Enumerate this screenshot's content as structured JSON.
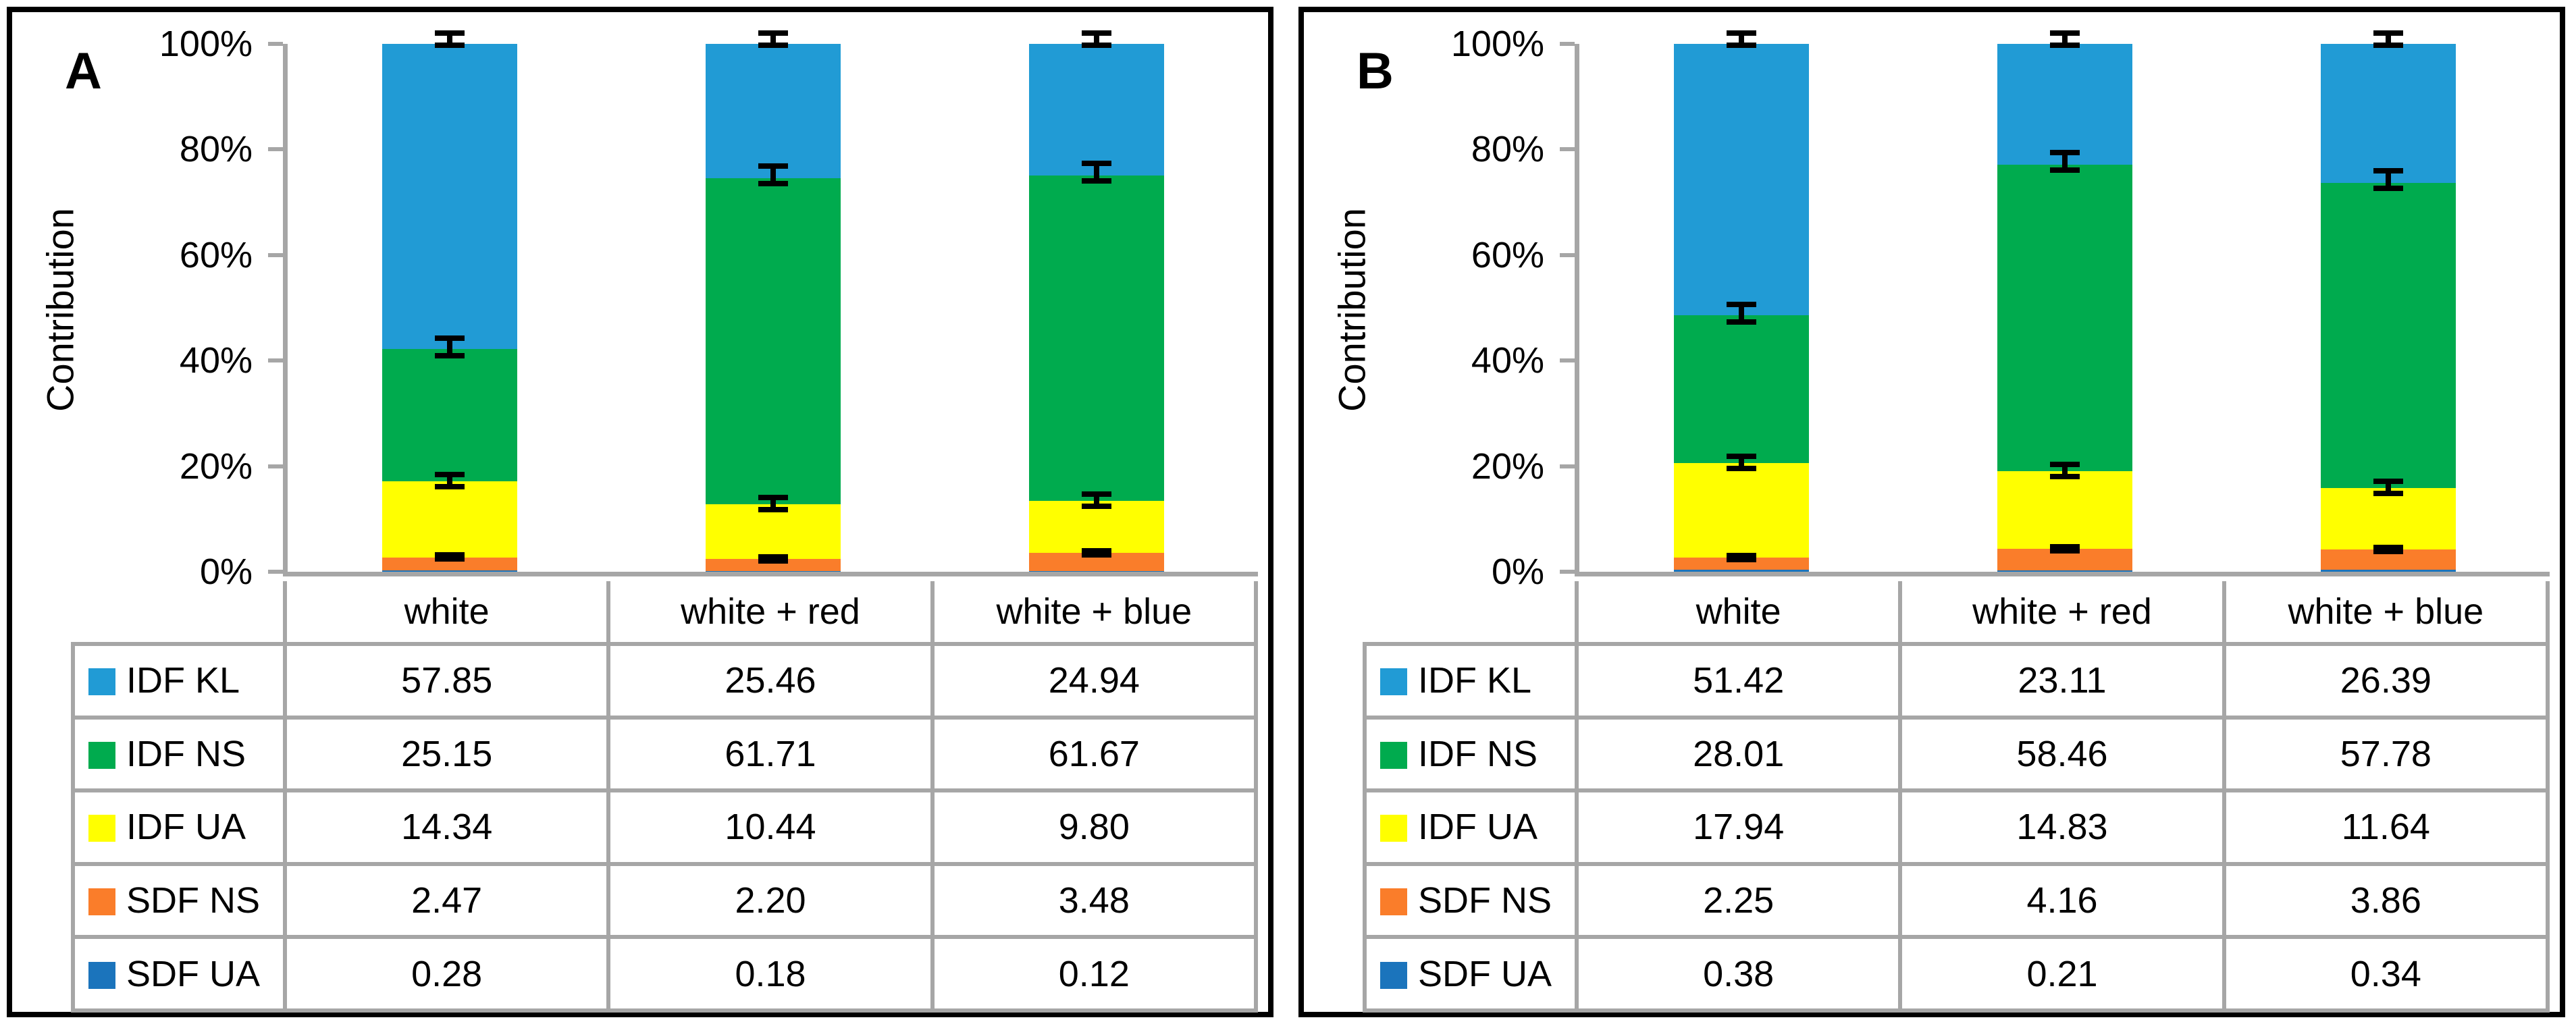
{
  "figure": {
    "description": "Two-panel 100% stacked column figure with error bars and legend data tables",
    "panel_count": 2
  },
  "colors": {
    "idf_kl": "#219BD5",
    "idf_ns": "#00AB4E",
    "idf_ua": "#FFFF00",
    "sdf_ns": "#FA7D2A",
    "sdf_ua": "#1B74BC",
    "axis": "#A6A6A6",
    "error_bar": "#000000",
    "panel_border": "#000000"
  },
  "chart_data": [
    {
      "type": "bar",
      "stacked": true,
      "panel_label": "A",
      "ylabel": "Contribution",
      "xlabel": "",
      "ylim": [
        0,
        100
      ],
      "y_ticks": [
        "100%",
        "80%",
        "60%",
        "40%",
        "20%",
        "0%"
      ],
      "grid": false,
      "error_bars": true,
      "legend_position": "table-below",
      "categories": [
        "white",
        "white + red",
        "white + blue"
      ],
      "series": [
        {
          "name": "IDF KL",
          "color_key": "idf_kl",
          "values": [
            57.85,
            25.46,
            24.94
          ]
        },
        {
          "name": "IDF NS",
          "color_key": "idf_ns",
          "values": [
            25.15,
            61.71,
            61.67
          ]
        },
        {
          "name": "IDF UA",
          "color_key": "idf_ua",
          "values": [
            14.34,
            10.44,
            9.8
          ]
        },
        {
          "name": "SDF NS",
          "color_key": "sdf_ns",
          "values": [
            2.47,
            2.2,
            3.48
          ]
        },
        {
          "name": "SDF UA",
          "color_key": "sdf_ua",
          "values": [
            0.28,
            0.18,
            0.12
          ]
        }
      ]
    },
    {
      "type": "bar",
      "stacked": true,
      "panel_label": "B",
      "ylabel": "Contribution",
      "xlabel": "",
      "ylim": [
        0,
        100
      ],
      "y_ticks": [
        "100%",
        "80%",
        "60%",
        "40%",
        "20%",
        "0%"
      ],
      "grid": false,
      "error_bars": true,
      "legend_position": "table-below",
      "categories": [
        "white",
        "white + red",
        "white + blue"
      ],
      "series": [
        {
          "name": "IDF KL",
          "color_key": "idf_kl",
          "values": [
            51.42,
            23.11,
            26.39
          ]
        },
        {
          "name": "IDF NS",
          "color_key": "idf_ns",
          "values": [
            28.01,
            58.46,
            57.78
          ]
        },
        {
          "name": "IDF UA",
          "color_key": "idf_ua",
          "values": [
            17.94,
            14.83,
            11.64
          ]
        },
        {
          "name": "SDF NS",
          "color_key": "sdf_ns",
          "values": [
            2.25,
            4.16,
            3.86
          ]
        },
        {
          "name": "SDF UA",
          "color_key": "sdf_ua",
          "values": [
            0.38,
            0.21,
            0.34
          ]
        }
      ]
    }
  ]
}
